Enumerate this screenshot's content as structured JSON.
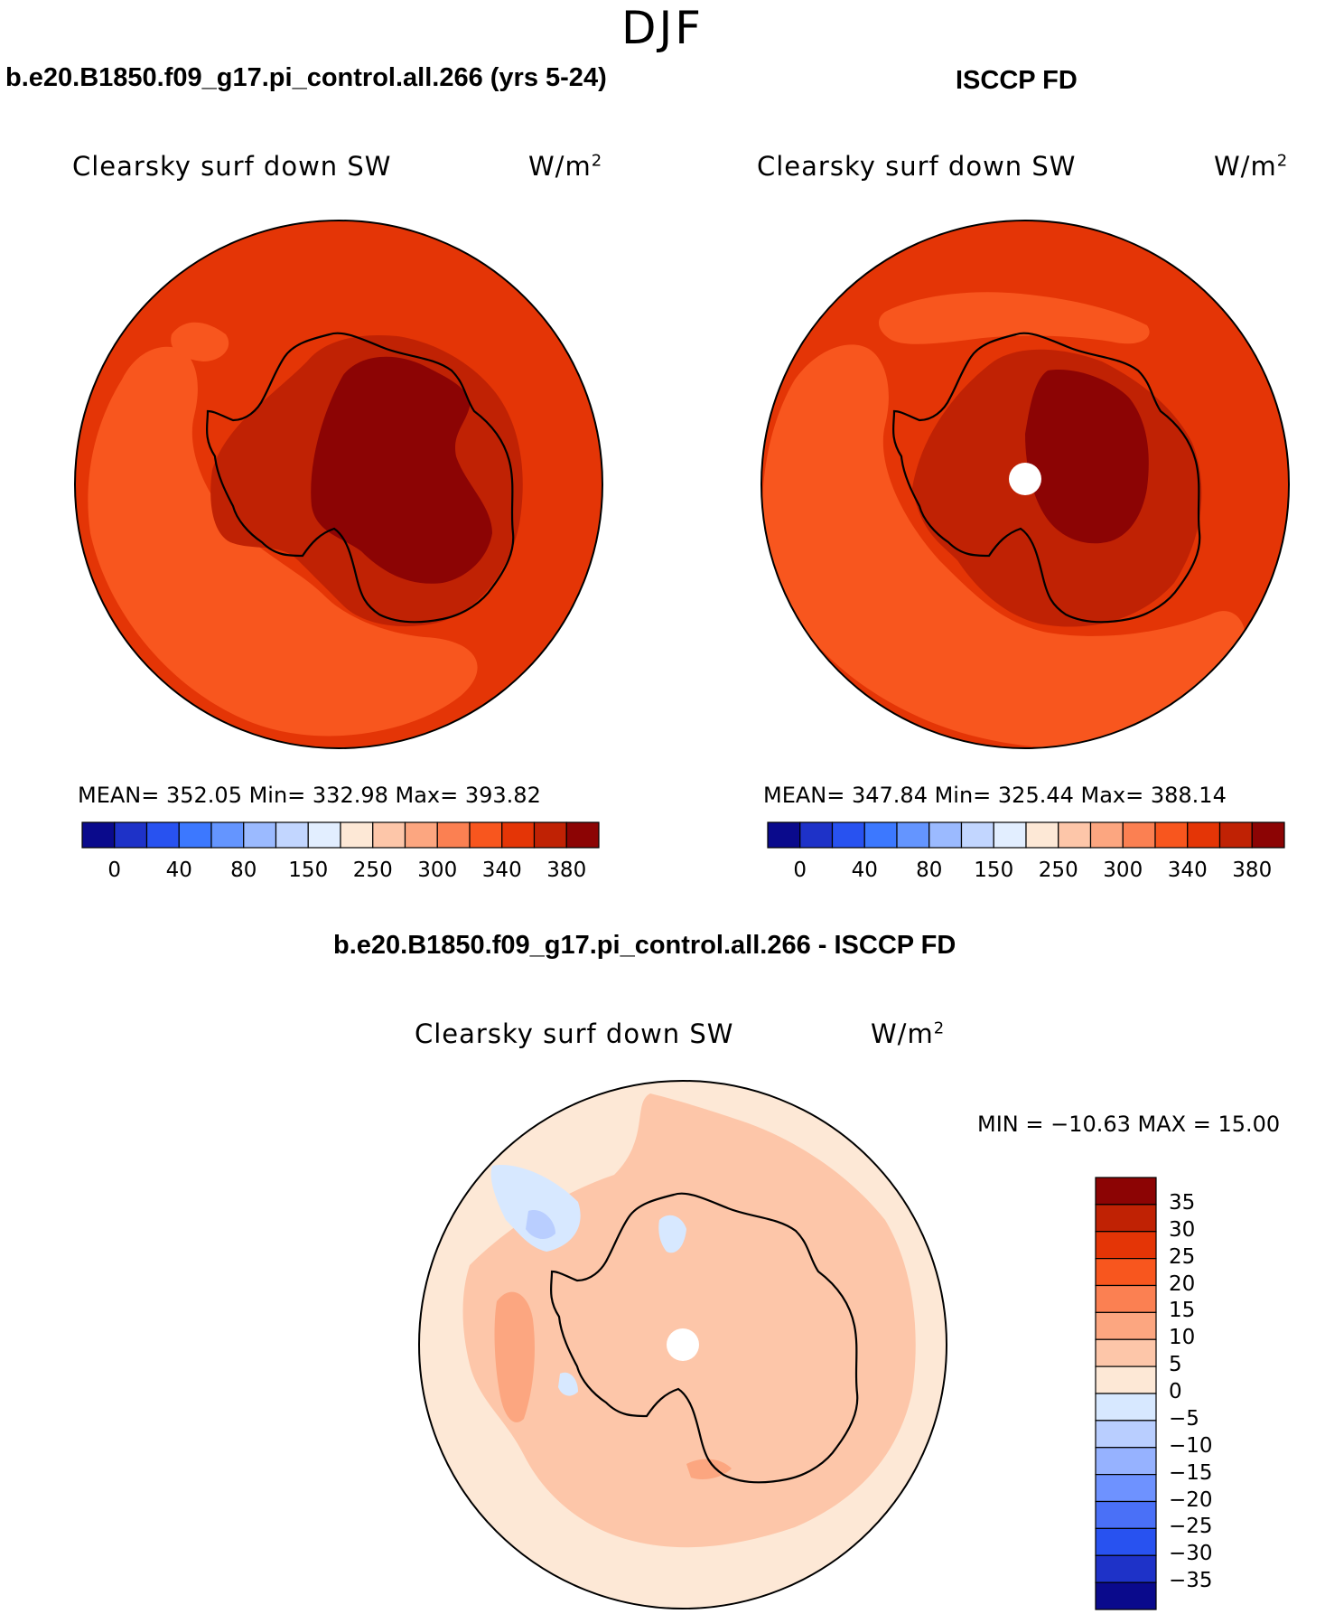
{
  "season": "DJF",
  "panels": [
    {
      "title": "b.e20.B1850.f09_g17.pi_control.all.266 (yrs 5-24)",
      "variable": "Clearsky surf down SW",
      "units": "W/m",
      "units_exp": "2",
      "stats": "MEAN= 352.05   Min= 332.98   Max= 393.82"
    },
    {
      "title": "ISCCP FD",
      "variable": "Clearsky surf down SW",
      "units": "W/m",
      "units_exp": "2",
      "stats": "MEAN= 347.84   Min= 325.44   Max= 388.14"
    }
  ],
  "diff_panel": {
    "title": "b.e20.B1850.f09_g17.pi_control.all.266 - ISCCP FD",
    "variable": "Clearsky surf down SW",
    "units": "W/m",
    "units_exp": "2",
    "stats": "MIN = −10.63 MAX =   15.00"
  },
  "abs_colorbar": {
    "colors": [
      "#0a0a8c",
      "#1e32c8",
      "#2852f0",
      "#3c78ff",
      "#6495ff",
      "#9bbaff",
      "#c2d6ff",
      "#e2eeff",
      "#fde8d6",
      "#fdc6a9",
      "#fca680",
      "#fb8052",
      "#f8561e",
      "#e43506",
      "#c02204",
      "#8c0404"
    ],
    "tick_labels": [
      "0",
      "40",
      "80",
      "150",
      "250",
      "300",
      "340",
      "380"
    ]
  },
  "diff_colorbar": {
    "colors": [
      "#8c0404",
      "#c02204",
      "#e43506",
      "#f8561e",
      "#fb8052",
      "#fca680",
      "#fdc6a9",
      "#fde8d6",
      "#d7e8ff",
      "#b9ceff",
      "#96b2ff",
      "#6e92ff",
      "#4a70f7",
      "#2852f0",
      "#1e32c8",
      "#0a0a8c"
    ],
    "tick_labels": [
      "35",
      "30",
      "25",
      "20",
      "15",
      "10",
      "5",
      "0",
      "−5",
      "−10",
      "−15",
      "−20",
      "−25",
      "−30",
      "−35"
    ]
  },
  "map_colors": {
    "ocean_far": "#e43506",
    "ocean_mid": "#f8561e",
    "coast_high": "#c02204",
    "interior": "#8c0404",
    "diff_base": "#fde8d6",
    "diff_pos": "#fdc6a9",
    "diff_pos2": "#fca680",
    "diff_neg": "#d7e8ff",
    "diff_neg2": "#b9ceff",
    "missing": "#ffffff"
  }
}
